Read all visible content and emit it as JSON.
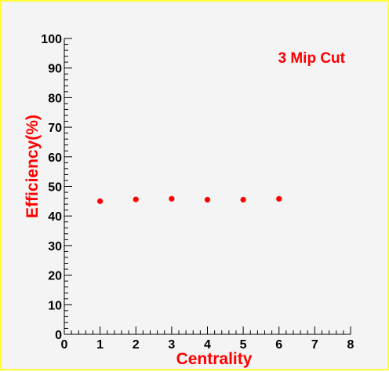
{
  "chart_data": {
    "type": "scatter",
    "title": "",
    "xlabel": "Centrality",
    "ylabel": "Efficiency(%)",
    "xlim": [
      0,
      8
    ],
    "ylim": [
      0,
      100
    ],
    "x_ticks": [
      "0",
      "1",
      "2",
      "3",
      "4",
      "5",
      "6",
      "7",
      "8"
    ],
    "y_ticks": [
      "0",
      "10",
      "20",
      "30",
      "40",
      "50",
      "60",
      "70",
      "80",
      "90",
      "100"
    ],
    "annotation": "3 Mip Cut",
    "grid": false,
    "legend": "none",
    "series": [
      {
        "x": [
          1,
          2,
          3,
          4,
          5,
          6
        ],
        "y": [
          45,
          45.6,
          45.8,
          45.5,
          45.5,
          45.8
        ]
      }
    ]
  },
  "colors": {
    "background": "#f4f4f4",
    "frame_border": "#ffff33",
    "axis": "#000000",
    "marker": "#ff0000",
    "label_text": "#ff0000"
  }
}
